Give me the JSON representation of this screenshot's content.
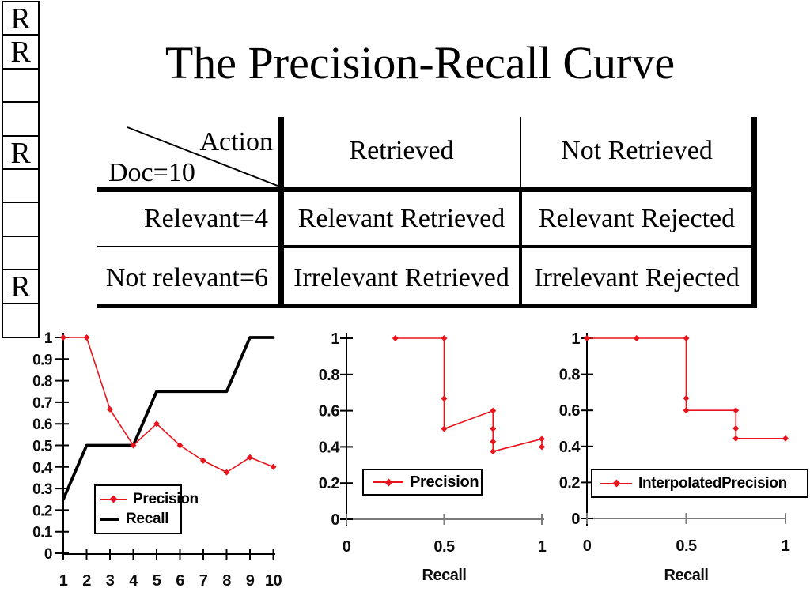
{
  "slide": {
    "title": "The Precision-Recall Curve"
  },
  "colors": {
    "accent_red": "#e8141c",
    "axis_black": "#000000",
    "axis_gray": "#7a7a7a"
  },
  "ranked_list": {
    "boxes": [
      "R",
      "R",
      "",
      "",
      "R",
      "",
      "",
      "",
      "R",
      ""
    ]
  },
  "contingency_table": {
    "corner_action": "Action",
    "corner_doc": "Doc=10",
    "col_headers": [
      "Retrieved",
      "Not Retrieved"
    ],
    "rows": [
      {
        "header": "Relevant=4",
        "cells": [
          "Relevant Retrieved",
          "Relevant Rejected"
        ]
      },
      {
        "header": "Not relevant=6",
        "cells": [
          "Irrelevant Retrieved",
          "Irrelevant Rejected"
        ]
      }
    ]
  },
  "chart_data": [
    {
      "id": "rank_chart",
      "type": "line",
      "x": [
        1,
        2,
        3,
        4,
        5,
        6,
        7,
        8,
        9,
        10
      ],
      "x_ticks": [
        "1",
        "2",
        "3",
        "4",
        "5",
        "6",
        "7",
        "8",
        "9",
        "10"
      ],
      "y_ticks": [
        "1",
        "0.9",
        "0.8",
        "0.7",
        "0.6",
        "0.5",
        "0.4",
        "0.3",
        "0.2",
        "0.1",
        "0"
      ],
      "ylim": [
        0,
        1
      ],
      "legend_position": "inside-bottom-left",
      "series": [
        {
          "name": "Precision",
          "color": "#e8141c",
          "marker": "diamond",
          "values": [
            1,
            1,
            0.667,
            0.5,
            0.6,
            0.5,
            0.429,
            0.375,
            0.444,
            0.4
          ]
        },
        {
          "name": "Recall",
          "color": "#000000",
          "marker": "none",
          "values": [
            0.25,
            0.5,
            0.5,
            0.5,
            0.75,
            0.75,
            0.75,
            0.75,
            1,
            1
          ]
        }
      ]
    },
    {
      "id": "precision_recall_curve",
      "type": "line",
      "series_name": "Precision",
      "xlabel": "Recall",
      "x_ticks": [
        "0",
        "0.5",
        "1"
      ],
      "y_ticks": [
        "1",
        "0.8",
        "0.6",
        "0.4",
        "0.2",
        "0"
      ],
      "xlim": [
        0,
        1
      ],
      "ylim": [
        0,
        1
      ],
      "color": "#e8141c",
      "points": [
        [
          0.25,
          1
        ],
        [
          0.5,
          1
        ],
        [
          0.5,
          0.667
        ],
        [
          0.5,
          0.5
        ],
        [
          0.75,
          0.6
        ],
        [
          0.75,
          0.5
        ],
        [
          0.75,
          0.429
        ],
        [
          0.75,
          0.375
        ],
        [
          1,
          0.444
        ],
        [
          1,
          0.4
        ]
      ]
    },
    {
      "id": "interpolated_precision_curve",
      "type": "line",
      "series_name": "InterpolatedPrecision",
      "xlabel": "Recall",
      "x_ticks": [
        "0",
        "0.5",
        "1"
      ],
      "y_ticks": [
        "1",
        "0.8",
        "0.6",
        "0.4",
        "0.2",
        "0"
      ],
      "xlim": [
        0,
        1
      ],
      "ylim": [
        0,
        1
      ],
      "color": "#e8141c",
      "points": [
        [
          0,
          1
        ],
        [
          0.25,
          1
        ],
        [
          0.5,
          1
        ],
        [
          0.5,
          0.667
        ],
        [
          0.5,
          0.6
        ],
        [
          0.75,
          0.6
        ],
        [
          0.75,
          0.5
        ],
        [
          0.75,
          0.444
        ],
        [
          1,
          0.444
        ]
      ]
    }
  ]
}
